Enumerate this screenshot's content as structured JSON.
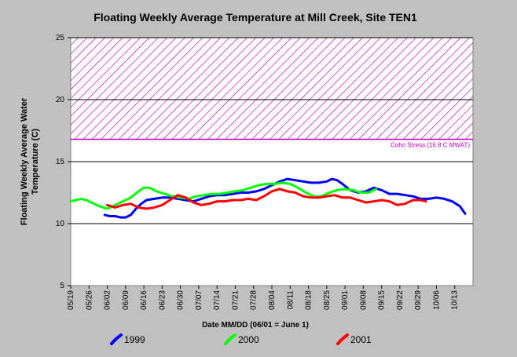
{
  "chart_data": {
    "type": "line",
    "title": "Floating Weekly Average Temperature at Mill Creek, Site TEN1",
    "ylabel_line1": "Floating Weekly Average Water",
    "ylabel_line2": "Temperature (C)",
    "xlabel": "Date MM/DD (06/01 = June 1)",
    "ylim": [
      5,
      25
    ],
    "yticks": [
      5,
      10,
      15,
      20,
      25
    ],
    "x_range": [
      "05/19",
      "10/20"
    ],
    "xticks": [
      "05/19",
      "05/26",
      "06/02",
      "06/09",
      "06/16",
      "06/23",
      "06/30",
      "07/07",
      "07/14",
      "07/21",
      "07/28",
      "08/04",
      "08/11",
      "08/18",
      "08/25",
      "09/01",
      "09/08",
      "09/15",
      "09/22",
      "09/29",
      "10/06",
      "10/13"
    ],
    "grid": "horizontal",
    "stress_band": {
      "label": "Coho Stress (16.8 C MWAT)",
      "ymin": 16.8,
      "ymax": 25,
      "color": "#c000c0"
    },
    "series": [
      {
        "name": "1999",
        "color": "#0000ff",
        "x": [
          "06/01",
          "06/03",
          "06/05",
          "06/07",
          "06/09",
          "06/11",
          "06/13",
          "06/15",
          "06/17",
          "06/20",
          "06/23",
          "06/26",
          "06/29",
          "07/02",
          "07/05",
          "07/08",
          "07/11",
          "07/14",
          "07/17",
          "07/20",
          "07/23",
          "07/26",
          "07/29",
          "08/01",
          "08/04",
          "08/07",
          "08/10",
          "08/13",
          "08/16",
          "08/19",
          "08/22",
          "08/25",
          "08/27",
          "08/29",
          "08/31",
          "09/03",
          "09/06",
          "09/09",
          "09/12",
          "09/15",
          "09/18",
          "09/21",
          "09/24",
          "09/27",
          "09/30",
          "10/03",
          "10/06",
          "10/09",
          "10/12",
          "10/15",
          "10/17"
        ],
        "y": [
          10.7,
          10.6,
          10.6,
          10.5,
          10.5,
          10.7,
          11.2,
          11.6,
          11.9,
          12.0,
          12.1,
          12.1,
          12.0,
          11.9,
          11.8,
          12.0,
          12.2,
          12.3,
          12.3,
          12.4,
          12.5,
          12.5,
          12.6,
          12.8,
          13.1,
          13.4,
          13.6,
          13.5,
          13.4,
          13.3,
          13.3,
          13.4,
          13.6,
          13.5,
          13.2,
          12.7,
          12.5,
          12.6,
          12.9,
          12.7,
          12.4,
          12.4,
          12.3,
          12.2,
          12.0,
          12.0,
          12.1,
          12.0,
          11.8,
          11.4,
          10.8
        ]
      },
      {
        "name": "2000",
        "color": "#00ff00",
        "x": [
          "05/19",
          "05/21",
          "05/23",
          "05/25",
          "05/27",
          "05/30",
          "06/02",
          "06/05",
          "06/08",
          "06/11",
          "06/14",
          "06/16",
          "06/18",
          "06/21",
          "06/24",
          "06/27",
          "06/30",
          "07/03",
          "07/06",
          "07/09",
          "07/12",
          "07/15",
          "07/18",
          "07/21",
          "07/24",
          "07/27",
          "07/30",
          "08/02",
          "08/05",
          "08/08",
          "08/11",
          "08/14",
          "08/17",
          "08/20",
          "08/23",
          "08/26",
          "08/29",
          "09/01",
          "09/04",
          "09/07",
          "09/10",
          "09/13"
        ],
        "y": [
          11.8,
          11.9,
          12.0,
          11.9,
          11.7,
          11.4,
          11.2,
          11.5,
          11.8,
          12.1,
          12.6,
          12.9,
          12.9,
          12.6,
          12.4,
          12.2,
          12.1,
          12.0,
          12.2,
          12.3,
          12.4,
          12.4,
          12.5,
          12.6,
          12.7,
          12.9,
          13.1,
          13.2,
          13.2,
          13.3,
          13.2,
          12.9,
          12.5,
          12.2,
          12.2,
          12.5,
          12.7,
          12.8,
          12.7,
          12.5,
          12.5,
          12.8
        ]
      },
      {
        "name": "2001",
        "color": "#ff0000",
        "x": [
          "06/02",
          "06/05",
          "06/08",
          "06/11",
          "06/14",
          "06/17",
          "06/20",
          "06/23",
          "06/26",
          "06/29",
          "07/02",
          "07/05",
          "07/08",
          "07/11",
          "07/14",
          "07/17",
          "07/20",
          "07/23",
          "07/26",
          "07/29",
          "08/01",
          "08/04",
          "08/07",
          "08/10",
          "08/13",
          "08/16",
          "08/19",
          "08/22",
          "08/25",
          "08/28",
          "08/31",
          "09/03",
          "09/06",
          "09/09",
          "09/12",
          "09/15",
          "09/18",
          "09/21",
          "09/24",
          "09/27",
          "09/30",
          "10/02"
        ],
        "y": [
          11.5,
          11.3,
          11.5,
          11.6,
          11.3,
          11.2,
          11.3,
          11.5,
          11.9,
          12.3,
          12.1,
          11.7,
          11.5,
          11.6,
          11.8,
          11.8,
          11.9,
          11.9,
          12.0,
          11.9,
          12.2,
          12.6,
          12.8,
          12.6,
          12.5,
          12.2,
          12.1,
          12.1,
          12.2,
          12.3,
          12.1,
          12.1,
          11.9,
          11.7,
          11.8,
          11.9,
          11.8,
          11.5,
          11.6,
          11.9,
          11.9,
          11.8
        ]
      }
    ]
  }
}
